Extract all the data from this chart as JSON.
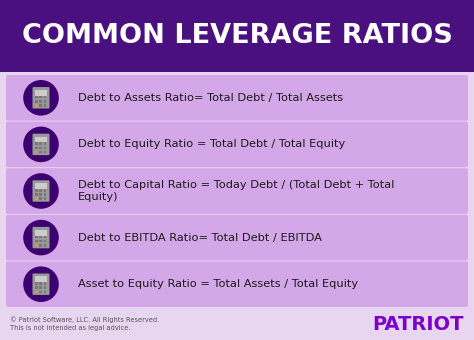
{
  "title": "COMMON LEVERAGE RATIOS",
  "title_bg": "#4a1080",
  "title_color": "#ffffff",
  "body_bg": "#e8d5f0",
  "row_bg": "#d4a8e8",
  "circle_color": "#3d0070",
  "text_color": "#1a1a1a",
  "rows": [
    "Debt to Assets Ratio= Total Debt / Total Assets",
    "Debt to Equity Ratio = Total Debt / Total Equity",
    "Debt to Capital Ratio = Today Debt / (Total Debt + Total\nEquity)",
    "Debt to EBITDA Ratio= Total Debt / EBITDA",
    "Asset to Equity Ratio = Total Assets / Total Equity"
  ],
  "footer_left1": "© Patriot Software, LLC. All Rights Reserved.",
  "footer_left2": "This is not intended as legal advice.",
  "footer_right": "PATRIOT",
  "footer_right_color": "#7b00cc"
}
